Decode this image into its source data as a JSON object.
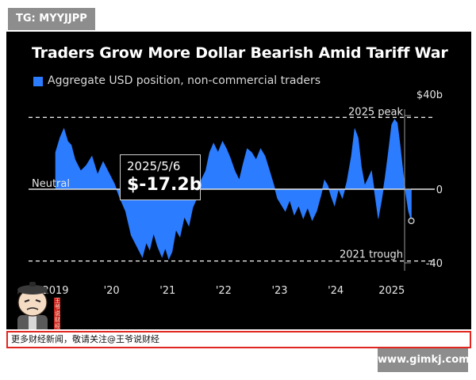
{
  "watermark_top": "TG: MYYJJPP",
  "watermark_bottom": "www.gimkj.com",
  "footer_text": "更多财经新闻，敬请关注@王爷说财经",
  "mascot_stamp": "王爷说财经",
  "colors": {
    "series": "#2b7cff",
    "background": "#000000",
    "frame": "#e0261f"
  },
  "chart_data": {
    "type": "area",
    "title": "Traders Grow More Dollar Bearish Amid Tariff War",
    "legend": [
      "Aggregate USD position, non-commercial traders"
    ],
    "legend_position": "top-left",
    "ylabel": "",
    "xlabel": "",
    "unit": "$b",
    "ylim": [
      -40,
      40
    ],
    "y_ticks": [
      {
        "value": 40,
        "label": "$40b"
      },
      {
        "value": 0,
        "label": "0"
      },
      {
        "value": -40,
        "label": "-40"
      }
    ],
    "x_range": [
      2019.0,
      2025.4
    ],
    "x_ticks": [
      {
        "value": 2019,
        "label": "2019"
      },
      {
        "value": 2020,
        "label": "'20"
      },
      {
        "value": 2021,
        "label": "'21"
      },
      {
        "value": 2022,
        "label": "'22"
      },
      {
        "value": 2023,
        "label": "'23"
      },
      {
        "value": 2024,
        "label": "'24"
      },
      {
        "value": 2025,
        "label": "2025"
      }
    ],
    "reference_lines": [
      {
        "value": 39,
        "label": "2025 peak",
        "style": "dashed"
      },
      {
        "value": 0,
        "label": "Neutral",
        "style": "solid"
      },
      {
        "value": -39,
        "label": "2021 trough",
        "style": "dashed"
      }
    ],
    "annotation": {
      "date": "2025/5/6",
      "x": 2025.35,
      "value": -17.2,
      "label": "$-17.2b"
    },
    "series": [
      {
        "name": "Aggregate USD position, non-commercial traders",
        "points": [
          [
            2019.0,
            20
          ],
          [
            2019.08,
            28
          ],
          [
            2019.15,
            33
          ],
          [
            2019.22,
            26
          ],
          [
            2019.28,
            24
          ],
          [
            2019.35,
            16
          ],
          [
            2019.45,
            10
          ],
          [
            2019.55,
            13
          ],
          [
            2019.65,
            18
          ],
          [
            2019.75,
            8
          ],
          [
            2019.85,
            15
          ],
          [
            2019.95,
            9
          ],
          [
            2020.05,
            3
          ],
          [
            2020.15,
            -5
          ],
          [
            2020.25,
            -12
          ],
          [
            2020.35,
            -25
          ],
          [
            2020.45,
            -31
          ],
          [
            2020.55,
            -37
          ],
          [
            2020.62,
            -29
          ],
          [
            2020.68,
            -33
          ],
          [
            2020.75,
            -24
          ],
          [
            2020.82,
            -31
          ],
          [
            2020.9,
            -37
          ],
          [
            2020.96,
            -32
          ],
          [
            2021.02,
            -38
          ],
          [
            2021.08,
            -34
          ],
          [
            2021.15,
            -22
          ],
          [
            2021.22,
            -26
          ],
          [
            2021.3,
            -15
          ],
          [
            2021.38,
            -20
          ],
          [
            2021.45,
            -10
          ],
          [
            2021.52,
            -5
          ],
          [
            2021.6,
            5
          ],
          [
            2021.68,
            10
          ],
          [
            2021.75,
            20
          ],
          [
            2021.82,
            25
          ],
          [
            2021.9,
            20
          ],
          [
            2021.98,
            26
          ],
          [
            2022.05,
            22
          ],
          [
            2022.12,
            17
          ],
          [
            2022.2,
            10
          ],
          [
            2022.28,
            5
          ],
          [
            2022.35,
            14
          ],
          [
            2022.42,
            22
          ],
          [
            2022.5,
            20
          ],
          [
            2022.58,
            16
          ],
          [
            2022.66,
            22
          ],
          [
            2022.74,
            18
          ],
          [
            2022.82,
            10
          ],
          [
            2022.9,
            2
          ],
          [
            2022.96,
            -5
          ],
          [
            2023.02,
            -8
          ],
          [
            2023.1,
            -12
          ],
          [
            2023.18,
            -6
          ],
          [
            2023.26,
            -14
          ],
          [
            2023.34,
            -9
          ],
          [
            2023.42,
            -16
          ],
          [
            2023.5,
            -10
          ],
          [
            2023.58,
            -17
          ],
          [
            2023.66,
            -12
          ],
          [
            2023.74,
            -3
          ],
          [
            2023.8,
            5
          ],
          [
            2023.86,
            2
          ],
          [
            2023.92,
            -4
          ],
          [
            2023.98,
            -9
          ],
          [
            2024.05,
            0
          ],
          [
            2024.12,
            -5
          ],
          [
            2024.2,
            4
          ],
          [
            2024.28,
            18
          ],
          [
            2024.34,
            33
          ],
          [
            2024.4,
            28
          ],
          [
            2024.46,
            12
          ],
          [
            2024.52,
            2
          ],
          [
            2024.58,
            6
          ],
          [
            2024.64,
            10
          ],
          [
            2024.7,
            -3
          ],
          [
            2024.76,
            -16
          ],
          [
            2024.82,
            -6
          ],
          [
            2024.88,
            6
          ],
          [
            2024.94,
            20
          ],
          [
            2025.0,
            35
          ],
          [
            2025.05,
            38
          ],
          [
            2025.1,
            36
          ],
          [
            2025.15,
            24
          ],
          [
            2025.2,
            10
          ],
          [
            2025.25,
            -2
          ],
          [
            2025.3,
            -12
          ],
          [
            2025.35,
            -17.2
          ]
        ]
      }
    ]
  }
}
